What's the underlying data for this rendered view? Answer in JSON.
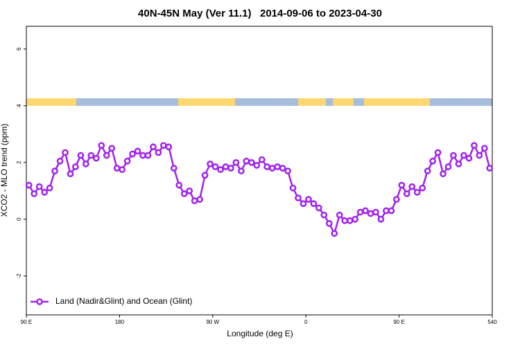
{
  "chart_data": {
    "type": "line",
    "title": "40N-45N May (Ver 11.1)   2014-09-06 to 2023-04-30",
    "xlabel": "Longitude (deg E)",
    "ylabel": "XCO2 - MLO trend (ppm)",
    "x": [
      92.5,
      97.5,
      102.5,
      107.5,
      112.5,
      117.5,
      122.5,
      127.5,
      132.5,
      137.5,
      142.5,
      147.5,
      152.5,
      157.5,
      162.5,
      167.5,
      172.5,
      177.5,
      182.5,
      187.5,
      192.5,
      197.5,
      202.5,
      207.5,
      212.5,
      217.5,
      222.5,
      227.5,
      232.5,
      237.5,
      242.5,
      247.5,
      252.5,
      257.5,
      262.5,
      267.5,
      272.5,
      277.5,
      282.5,
      287.5,
      292.5,
      297.5,
      302.5,
      307.5,
      312.5,
      317.5,
      322.5,
      327.5,
      332.5,
      337.5,
      342.5,
      347.5,
      352.5,
      357.5,
      362.5,
      367.5,
      372.5,
      377.5,
      382.5,
      387.5,
      392.5,
      397.5,
      402.5,
      407.5,
      412.5,
      417.5,
      422.5,
      427.5,
      432.5,
      437.5,
      442.5,
      447.5,
      452.5,
      457.5,
      462.5,
      467.5,
      472.5,
      477.5,
      482.5,
      487.5,
      492.5,
      497.5,
      502.5,
      507.5,
      512.5,
      517.5,
      522.5,
      527.5,
      532.5,
      537.5
    ],
    "series": [
      {
        "name": "Land (Nadir&Glint) and Ocean (Glint)",
        "color": "#a020f0",
        "values": [
          1.2,
          0.9,
          1.15,
          0.95,
          1.1,
          1.7,
          2.05,
          2.35,
          1.6,
          1.85,
          2.25,
          1.95,
          2.25,
          2.15,
          2.6,
          2.25,
          2.5,
          1.8,
          1.75,
          2.05,
          2.3,
          2.4,
          2.25,
          2.25,
          2.55,
          2.35,
          2.6,
          2.55,
          1.8,
          1.2,
          0.9,
          1.0,
          0.65,
          0.7,
          1.55,
          1.95,
          1.85,
          1.75,
          1.85,
          1.8,
          2.0,
          1.7,
          2.05,
          2.0,
          1.9,
          2.1,
          1.85,
          1.8,
          1.85,
          1.8,
          1.7,
          1.1,
          0.75,
          0.55,
          0.7,
          0.55,
          0.4,
          0.15,
          -0.15,
          -0.5,
          0.15,
          -0.05,
          -0.05,
          0.0,
          0.25,
          0.3,
          0.2,
          0.25,
          0.0,
          0.3,
          0.3,
          0.7,
          1.2,
          0.9,
          1.15,
          0.95,
          1.1,
          1.7,
          2.05,
          2.35,
          1.6,
          1.85,
          2.25,
          1.95,
          2.25,
          2.15,
          2.6,
          2.25,
          2.5,
          1.8
        ]
      }
    ],
    "xlim": [
      90,
      540
    ],
    "xticks": [
      {
        "value": 90,
        "label": "90 E"
      },
      180,
      {
        "value": 270,
        "label": "90 W"
      },
      0,
      {
        "value": 450,
        "label": "90 E"
      },
      540
    ],
    "ylim": [
      -3.37,
      6.8
    ],
    "yticks": [
      -2,
      0,
      2,
      4,
      6
    ],
    "legend": "bottomleft"
  }
}
